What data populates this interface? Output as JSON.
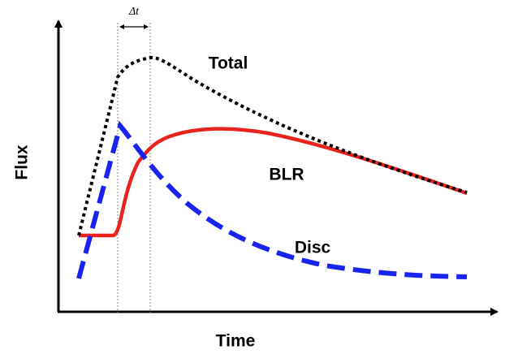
{
  "labels": {
    "y_axis": "Flux",
    "x_axis": "Time",
    "delta": "Δt",
    "total": "Total",
    "blr": "BLR",
    "disc": "Disc"
  }
}
